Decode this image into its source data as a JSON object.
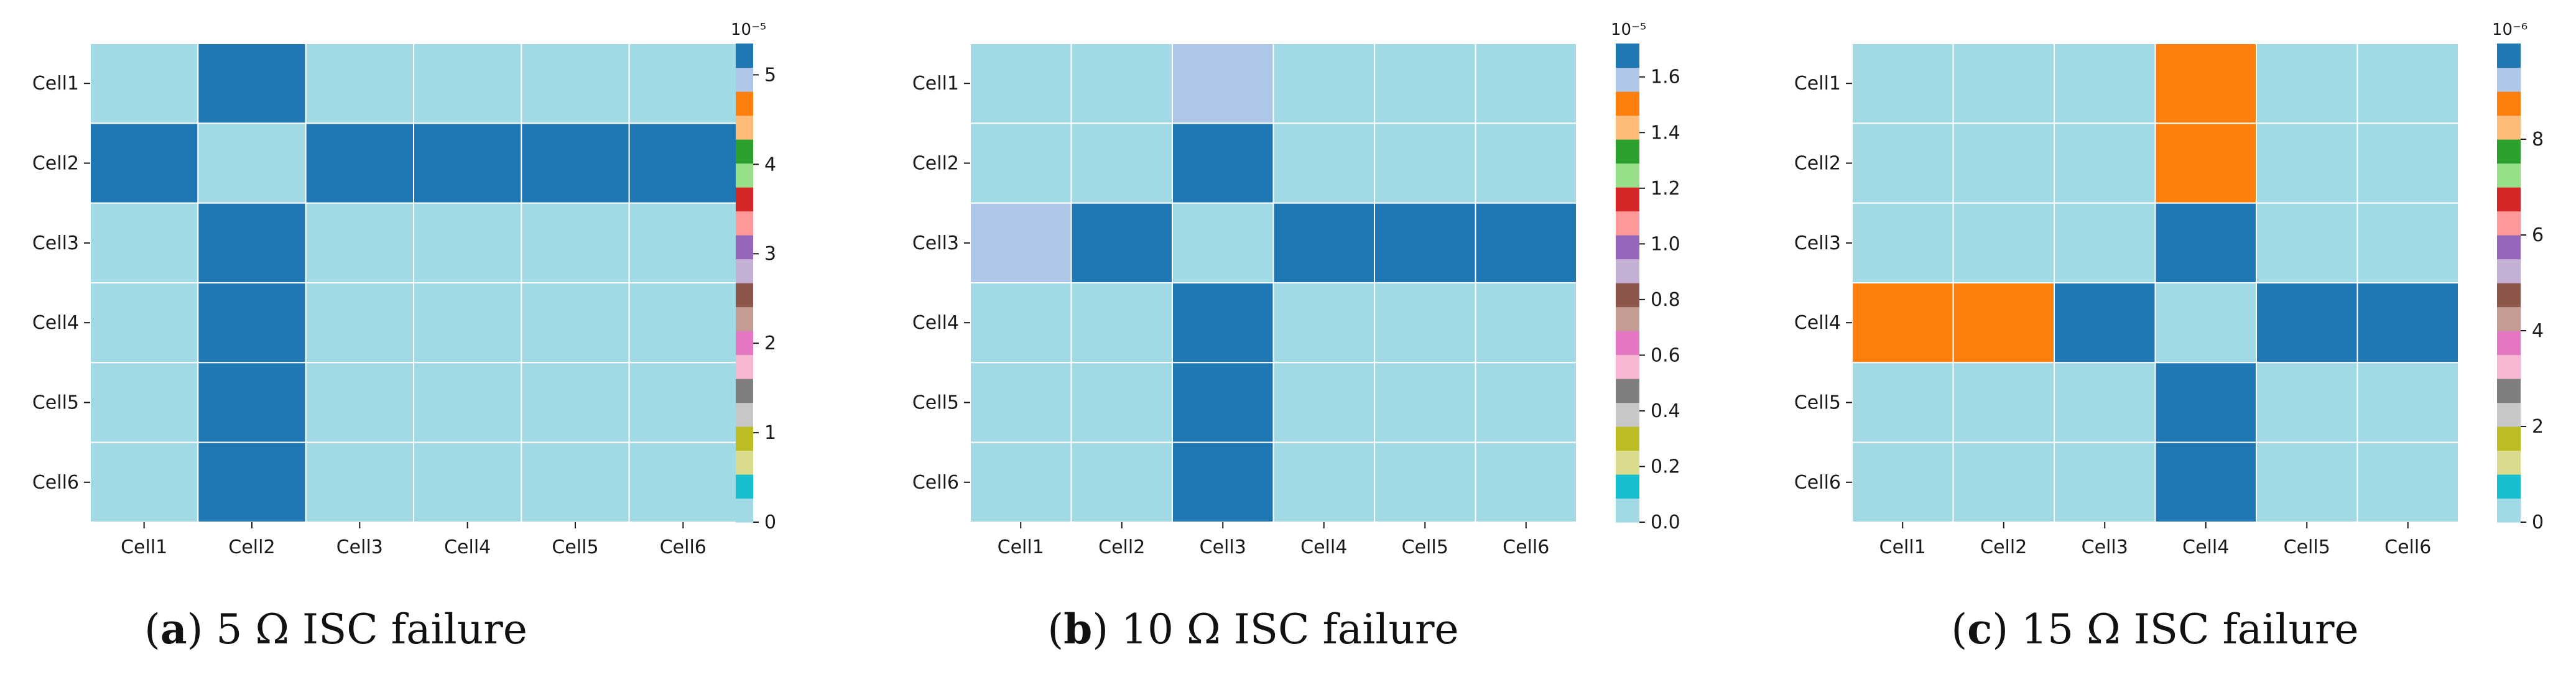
{
  "palette": [
    "#a1d9e5",
    "#17becf",
    "#dbdb8d",
    "#bcbd22",
    "#c7c7c7",
    "#7f7f7f",
    "#f7b6d2",
    "#e377c2",
    "#c49c94",
    "#8c564b",
    "#c5b0d5",
    "#9467bd",
    "#ff9896",
    "#d62728",
    "#98df8a",
    "#2ca02c",
    "#ffbb78",
    "#ff7f0e",
    "#aec7e8",
    "#1f77b4"
  ],
  "chart_data": [
    {
      "type": "heatmap",
      "caption_label": "a",
      "caption_text": "5 Ω ISC failure",
      "rows": [
        "Cell1",
        "Cell2",
        "Cell3",
        "Cell4",
        "Cell5",
        "Cell6"
      ],
      "cols": [
        "Cell1",
        "Cell2",
        "Cell3",
        "Cell4",
        "Cell5",
        "Cell6"
      ],
      "values": [
        [
          0,
          5.35,
          0,
          0,
          0,
          0
        ],
        [
          5.35,
          0,
          5.35,
          5.35,
          5.35,
          5.35
        ],
        [
          0,
          5.35,
          0,
          0,
          0,
          0
        ],
        [
          0,
          5.35,
          0,
          0,
          0,
          0
        ],
        [
          0,
          5.35,
          0,
          0,
          0,
          0
        ],
        [
          0,
          5.35,
          0,
          0,
          0,
          0
        ]
      ],
      "colorbar": {
        "min": 0,
        "max": 5.35,
        "ticks": [
          0,
          1,
          2,
          3,
          4,
          5
        ],
        "tick_labels": [
          "0",
          "1",
          "2",
          "3",
          "4",
          "5"
        ],
        "exponent": "10⁻⁵"
      }
    },
    {
      "type": "heatmap",
      "caption_label": "b",
      "caption_text": "10 Ω ISC failure",
      "rows": [
        "Cell1",
        "Cell2",
        "Cell3",
        "Cell4",
        "Cell5",
        "Cell6"
      ],
      "cols": [
        "Cell1",
        "Cell2",
        "Cell3",
        "Cell4",
        "Cell5",
        "Cell6"
      ],
      "values": [
        [
          0,
          0,
          1.6,
          0,
          0,
          0
        ],
        [
          0,
          0,
          1.72,
          0,
          0,
          0
        ],
        [
          1.6,
          1.72,
          0,
          1.72,
          1.72,
          1.72
        ],
        [
          0,
          0,
          1.72,
          0,
          0,
          0
        ],
        [
          0,
          0,
          1.72,
          0,
          0,
          0
        ],
        [
          0,
          0,
          1.72,
          0,
          0,
          0
        ]
      ],
      "colorbar": {
        "min": 0,
        "max": 1.72,
        "ticks": [
          0,
          0.2,
          0.4,
          0.6,
          0.8,
          1.0,
          1.2,
          1.4,
          1.6
        ],
        "tick_labels": [
          "0.0",
          "0.2",
          "0.4",
          "0.6",
          "0.8",
          "1.0",
          "1.2",
          "1.4",
          "1.6"
        ],
        "exponent": "10⁻⁵"
      }
    },
    {
      "type": "heatmap",
      "caption_label": "c",
      "caption_text": "15 Ω ISC failure",
      "rows": [
        "Cell1",
        "Cell2",
        "Cell3",
        "Cell4",
        "Cell5",
        "Cell6"
      ],
      "cols": [
        "Cell1",
        "Cell2",
        "Cell3",
        "Cell4",
        "Cell5",
        "Cell6"
      ],
      "values": [
        [
          0,
          0,
          0,
          8.6,
          0,
          0
        ],
        [
          0,
          0,
          0,
          8.6,
          0,
          0
        ],
        [
          0,
          0,
          0,
          9.5,
          0,
          0
        ],
        [
          8.6,
          8.6,
          9.5,
          0,
          10.0,
          9.5
        ],
        [
          0,
          0,
          0,
          10.0,
          0,
          0
        ],
        [
          0,
          0,
          0,
          9.5,
          0,
          0
        ]
      ],
      "colorbar": {
        "min": 0,
        "max": 10.0,
        "ticks": [
          0,
          2,
          4,
          6,
          8
        ],
        "tick_labels": [
          "0",
          "2",
          "4",
          "6",
          "8"
        ],
        "exponent": "10⁻⁶"
      }
    }
  ]
}
